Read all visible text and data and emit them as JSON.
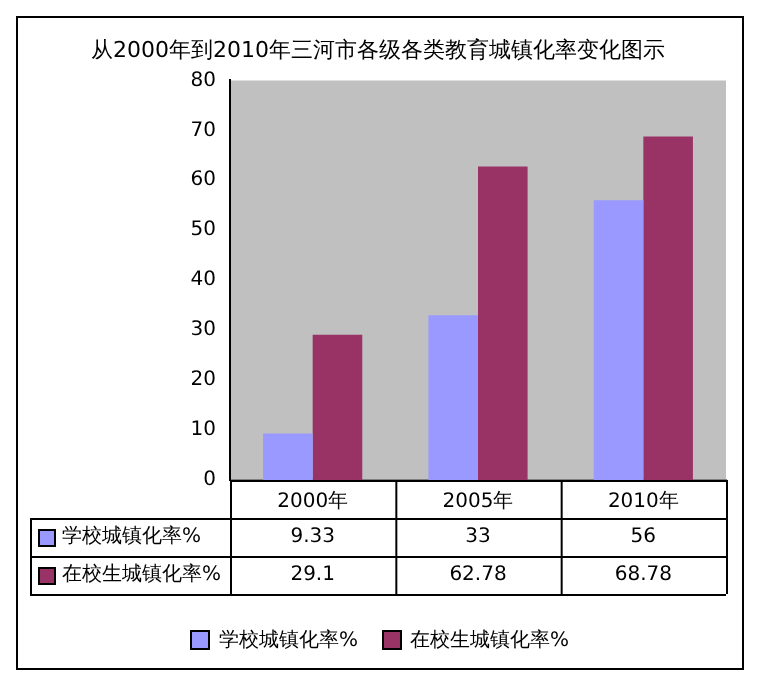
{
  "chart_data": {
    "type": "bar",
    "title": "从2000年到2010年三河市各级各类教育城镇化率变化图示",
    "categories": [
      "2000年",
      "2005年",
      "2010年"
    ],
    "series": [
      {
        "name": "学校城镇化率%",
        "color": "#9999ff",
        "values": [
          9.33,
          33,
          56
        ]
      },
      {
        "name": "在校生城镇化率%",
        "color": "#993366",
        "values": [
          29.1,
          62.78,
          68.78
        ]
      }
    ],
    "ylim": [
      0,
      80
    ],
    "yticks": [
      0,
      10,
      20,
      30,
      40,
      50,
      60,
      70,
      80
    ],
    "grid": false,
    "legend": "bottom",
    "data_labels": true
  }
}
